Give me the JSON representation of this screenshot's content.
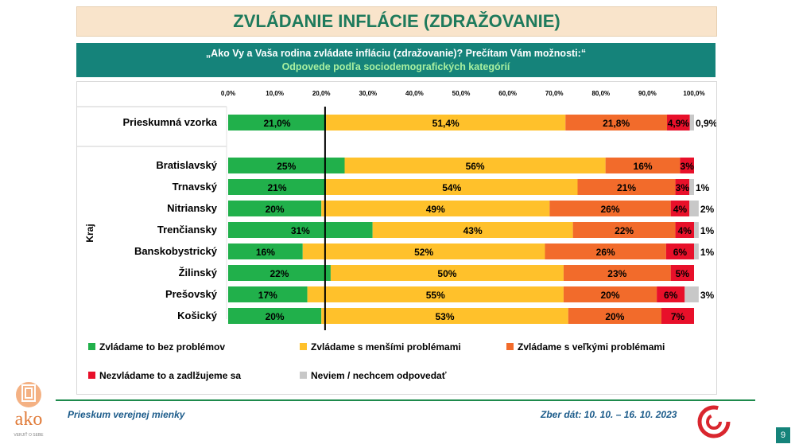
{
  "title": "ZVLÁDANIE INFLÁCIE (ZDRAŽOVANIE)",
  "question": "„Ako Vy a Vaša rodina zvládate infláciu (zdražovanie)? Prečítam Vám možnosti:“",
  "subtitle": "Odpovede podľa sociodemografických kategórií",
  "footer": {
    "left": "Prieskum verejnej mienky",
    "right": "Zber dát: 10. 10. – 16. 10. 2023",
    "page": "9"
  },
  "logo": {
    "text": "ako",
    "tagline": "VERJIŤ O SEBE"
  },
  "colors": {
    "green": "#21b04b",
    "yellow": "#ffc12b",
    "orange": "#f26b2b",
    "red": "#e8102a",
    "gray": "#c8c8c8",
    "teal": "#15837a",
    "title_green": "#1e7a5c",
    "footer_blue": "#1b5b8a"
  },
  "chart_data": {
    "type": "bar",
    "orientation": "horizontal",
    "stacked": true,
    "xlim": [
      0,
      100
    ],
    "x_ticks": [
      "0,0%",
      "10,0%",
      "20,0%",
      "30,0%",
      "40,0%",
      "50,0%",
      "60,0%",
      "70,0%",
      "80,0%",
      "90,0%",
      "100,0%"
    ],
    "reference_line": 20.8,
    "group_label": "Kraj",
    "categories": [
      "Prieskumná vzorka",
      "Bratislavský",
      "Trnavský",
      "Nitriansky",
      "Trenčiansky",
      "Banskobystrický",
      "Žilinský",
      "Prešovský",
      "Košický"
    ],
    "series": [
      {
        "name": "Zvládame to bez problémov",
        "color": "#21b04b",
        "values": [
          21.0,
          25,
          21,
          20,
          31,
          16,
          22,
          17,
          20
        ],
        "labels": [
          "21,0%",
          "25%",
          "21%",
          "20%",
          "31%",
          "16%",
          "22%",
          "17%",
          "20%"
        ]
      },
      {
        "name": "Zvládame s menšími problémami",
        "color": "#ffc12b",
        "values": [
          51.4,
          56,
          54,
          49,
          43,
          52,
          50,
          55,
          53
        ],
        "labels": [
          "51,4%",
          "56%",
          "54%",
          "49%",
          "43%",
          "52%",
          "50%",
          "55%",
          "53%"
        ]
      },
      {
        "name": "Zvládame s veľkými problémami",
        "color": "#f26b2b",
        "values": [
          21.8,
          16,
          21,
          26,
          22,
          26,
          23,
          20,
          20
        ],
        "labels": [
          "21,8%",
          "16%",
          "21%",
          "26%",
          "22%",
          "26%",
          "23%",
          "20%",
          "20%"
        ]
      },
      {
        "name": "Nezvládame to a zadlžujeme sa",
        "color": "#e8102a",
        "values": [
          4.9,
          3,
          3,
          4,
          4,
          6,
          5,
          6,
          7
        ],
        "labels": [
          "4,9%",
          "3%",
          "3%",
          "4%",
          "4%",
          "6%",
          "5%",
          "6%",
          "7%"
        ]
      },
      {
        "name": "Neviem / nechcem odpovedať",
        "color": "#c8c8c8",
        "values": [
          0.9,
          0,
          1,
          2,
          1,
          1,
          0,
          3,
          0
        ],
        "labels": [
          "0,9%",
          "",
          "1%",
          "2%",
          "1%",
          "1%",
          "",
          "3%",
          ""
        ]
      }
    ],
    "legend": "bottom"
  }
}
